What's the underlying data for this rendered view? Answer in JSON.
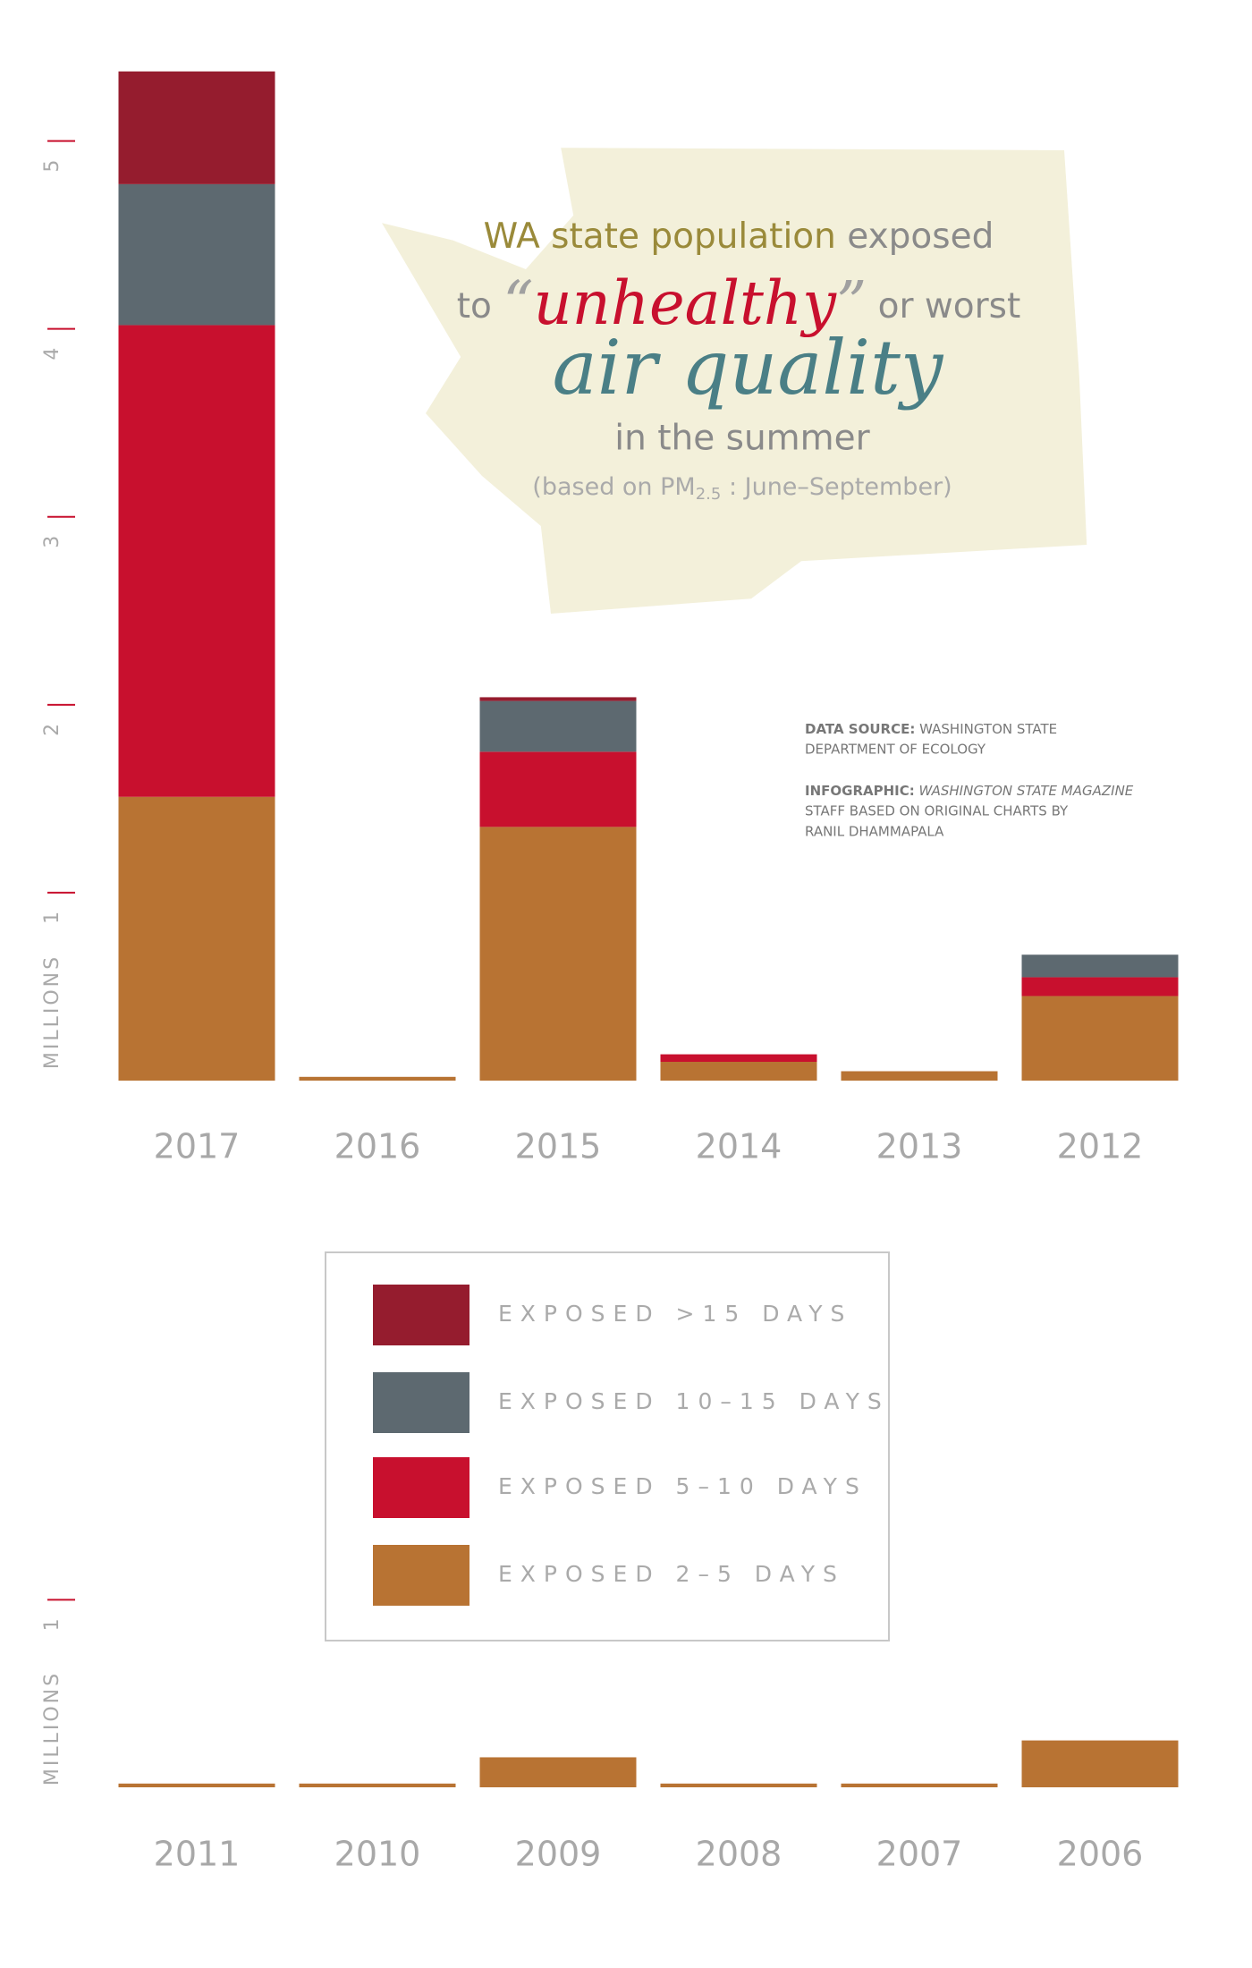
{
  "title": {
    "line1": [
      "WA state population",
      " exposed"
    ],
    "line2": [
      "to ",
      "“",
      "unhealthy",
      "”",
      " or worst"
    ],
    "line3": "air quality",
    "line4": "in the summer",
    "line5": [
      "(based on PM",
      "2.5",
      " : June–September)"
    ]
  },
  "credits": {
    "source_label": "DATA SOURCE:",
    "source": [
      "WASHINGTON STATE",
      "DEPARTMENT OF ECOLOGY"
    ],
    "infographic_label": "INFOGRAPHIC:",
    "infographic_magazine": "WASHINGTON STATE MAGAZINE",
    "infographic": [
      "STAFF BASED ON ORIGINAL CHARTS BY",
      "RANIL DHAMMAPALA"
    ]
  },
  "chart_data": [
    {
      "type": "bar",
      "stacked": true,
      "y_label": "MILLIONS",
      "categories": [
        "2017",
        "2016",
        "2015",
        "2014",
        "2013",
        "2012"
      ],
      "series": [
        {
          "name": "EXPOSED 2–5 DAYS",
          "color": "#b87333",
          "values": [
            1.51,
            0.02,
            1.35,
            0.1,
            0.05,
            0.45
          ]
        },
        {
          "name": "EXPOSED 5–10 DAYS",
          "color": "#c8102e",
          "values": [
            2.51,
            0,
            0.4,
            0.04,
            0,
            0.1
          ]
        },
        {
          "name": "EXPOSED 10–15 DAYS",
          "color": "#5d6970",
          "values": [
            0.75,
            0,
            0.27,
            0,
            0,
            0.12
          ]
        },
        {
          "name": "EXPOSED >15 DAYS",
          "color": "#951c2e",
          "values": [
            0.6,
            0,
            0.02,
            0,
            0,
            0
          ]
        }
      ],
      "ylim": [
        0,
        5.75
      ],
      "yticks": [
        1,
        2,
        3,
        4,
        5
      ]
    },
    {
      "type": "bar",
      "y_label": "MILLIONS",
      "categories": [
        "2011",
        "2010",
        "2009",
        "2008",
        "2007",
        "2006"
      ],
      "values": [
        0.02,
        0.02,
        0.16,
        0.02,
        0.02,
        0.25
      ],
      "color": "#b87333",
      "ylim": [
        0,
        1.25
      ],
      "yticks": [
        1
      ]
    }
  ]
}
